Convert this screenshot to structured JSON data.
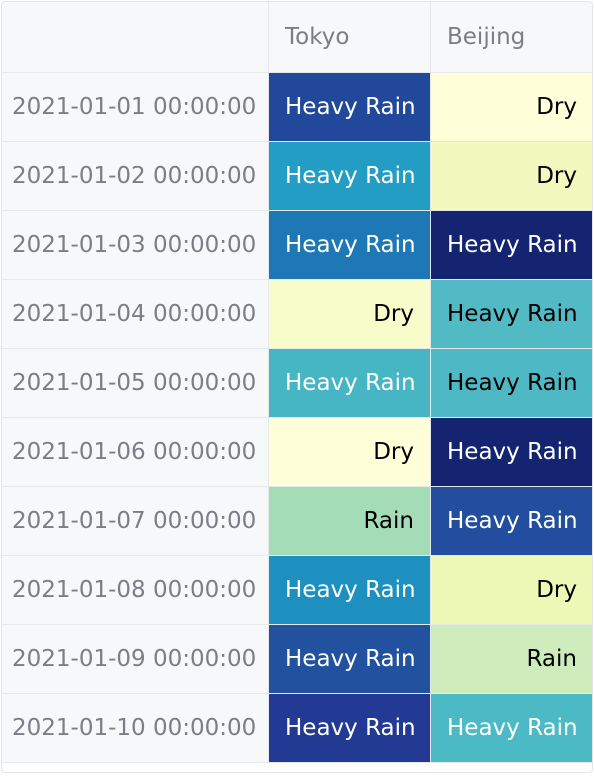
{
  "table": {
    "columns": [
      "",
      "Tokyo",
      "Beijing"
    ],
    "rows": [
      {
        "index": "2021-01-01 00:00:00",
        "cells": [
          {
            "text": "Heavy Rain",
            "bg": "#21489b",
            "fg": "#ffffff"
          },
          {
            "text": "Dry",
            "bg": "#fefed8",
            "fg": "#000000"
          }
        ]
      },
      {
        "index": "2021-01-02 00:00:00",
        "cells": [
          {
            "text": "Heavy Rain",
            "bg": "#249dc4",
            "fg": "#ffffff"
          },
          {
            "text": "Dry",
            "bg": "#f1f9be",
            "fg": "#000000"
          }
        ]
      },
      {
        "index": "2021-01-03 00:00:00",
        "cells": [
          {
            "text": "Heavy Rain",
            "bg": "#1f78b6",
            "fg": "#ffffff"
          },
          {
            "text": "Heavy Rain",
            "bg": "#142470",
            "fg": "#ffffff"
          }
        ]
      },
      {
        "index": "2021-01-04 00:00:00",
        "cells": [
          {
            "text": "Dry",
            "bg": "#f8fcca",
            "fg": "#000000"
          },
          {
            "text": "Heavy Rain",
            "bg": "#52bac4",
            "fg": "#000000"
          }
        ]
      },
      {
        "index": "2021-01-05 00:00:00",
        "cells": [
          {
            "text": "Heavy Rain",
            "bg": "#46b6c4",
            "fg": "#ffffff"
          },
          {
            "text": "Heavy Rain",
            "bg": "#4eb8c4",
            "fg": "#000000"
          }
        ]
      },
      {
        "index": "2021-01-06 00:00:00",
        "cells": [
          {
            "text": "Dry",
            "bg": "#fefed8",
            "fg": "#000000"
          },
          {
            "text": "Heavy Rain",
            "bg": "#142470",
            "fg": "#ffffff"
          }
        ]
      },
      {
        "index": "2021-01-07 00:00:00",
        "cells": [
          {
            "text": "Rain",
            "bg": "#a4dcb8",
            "fg": "#000000"
          },
          {
            "text": "Heavy Rain",
            "bg": "#234d9f",
            "fg": "#ffffff"
          }
        ]
      },
      {
        "index": "2021-01-08 00:00:00",
        "cells": [
          {
            "text": "Heavy Rain",
            "bg": "#1e90c0",
            "fg": "#ffffff"
          },
          {
            "text": "Dry",
            "bg": "#eef8b6",
            "fg": "#000000"
          }
        ]
      },
      {
        "index": "2021-01-09 00:00:00",
        "cells": [
          {
            "text": "Heavy Rain",
            "bg": "#22529f",
            "fg": "#ffffff"
          },
          {
            "text": "Rain",
            "bg": "#cdebbb",
            "fg": "#000000"
          }
        ]
      },
      {
        "index": "2021-01-10 00:00:00",
        "cells": [
          {
            "text": "Heavy Rain",
            "bg": "#233a94",
            "fg": "#ffffff"
          },
          {
            "text": "Heavy Rain",
            "bg": "#4cbac4",
            "fg": "#ffffff"
          }
        ]
      }
    ]
  }
}
